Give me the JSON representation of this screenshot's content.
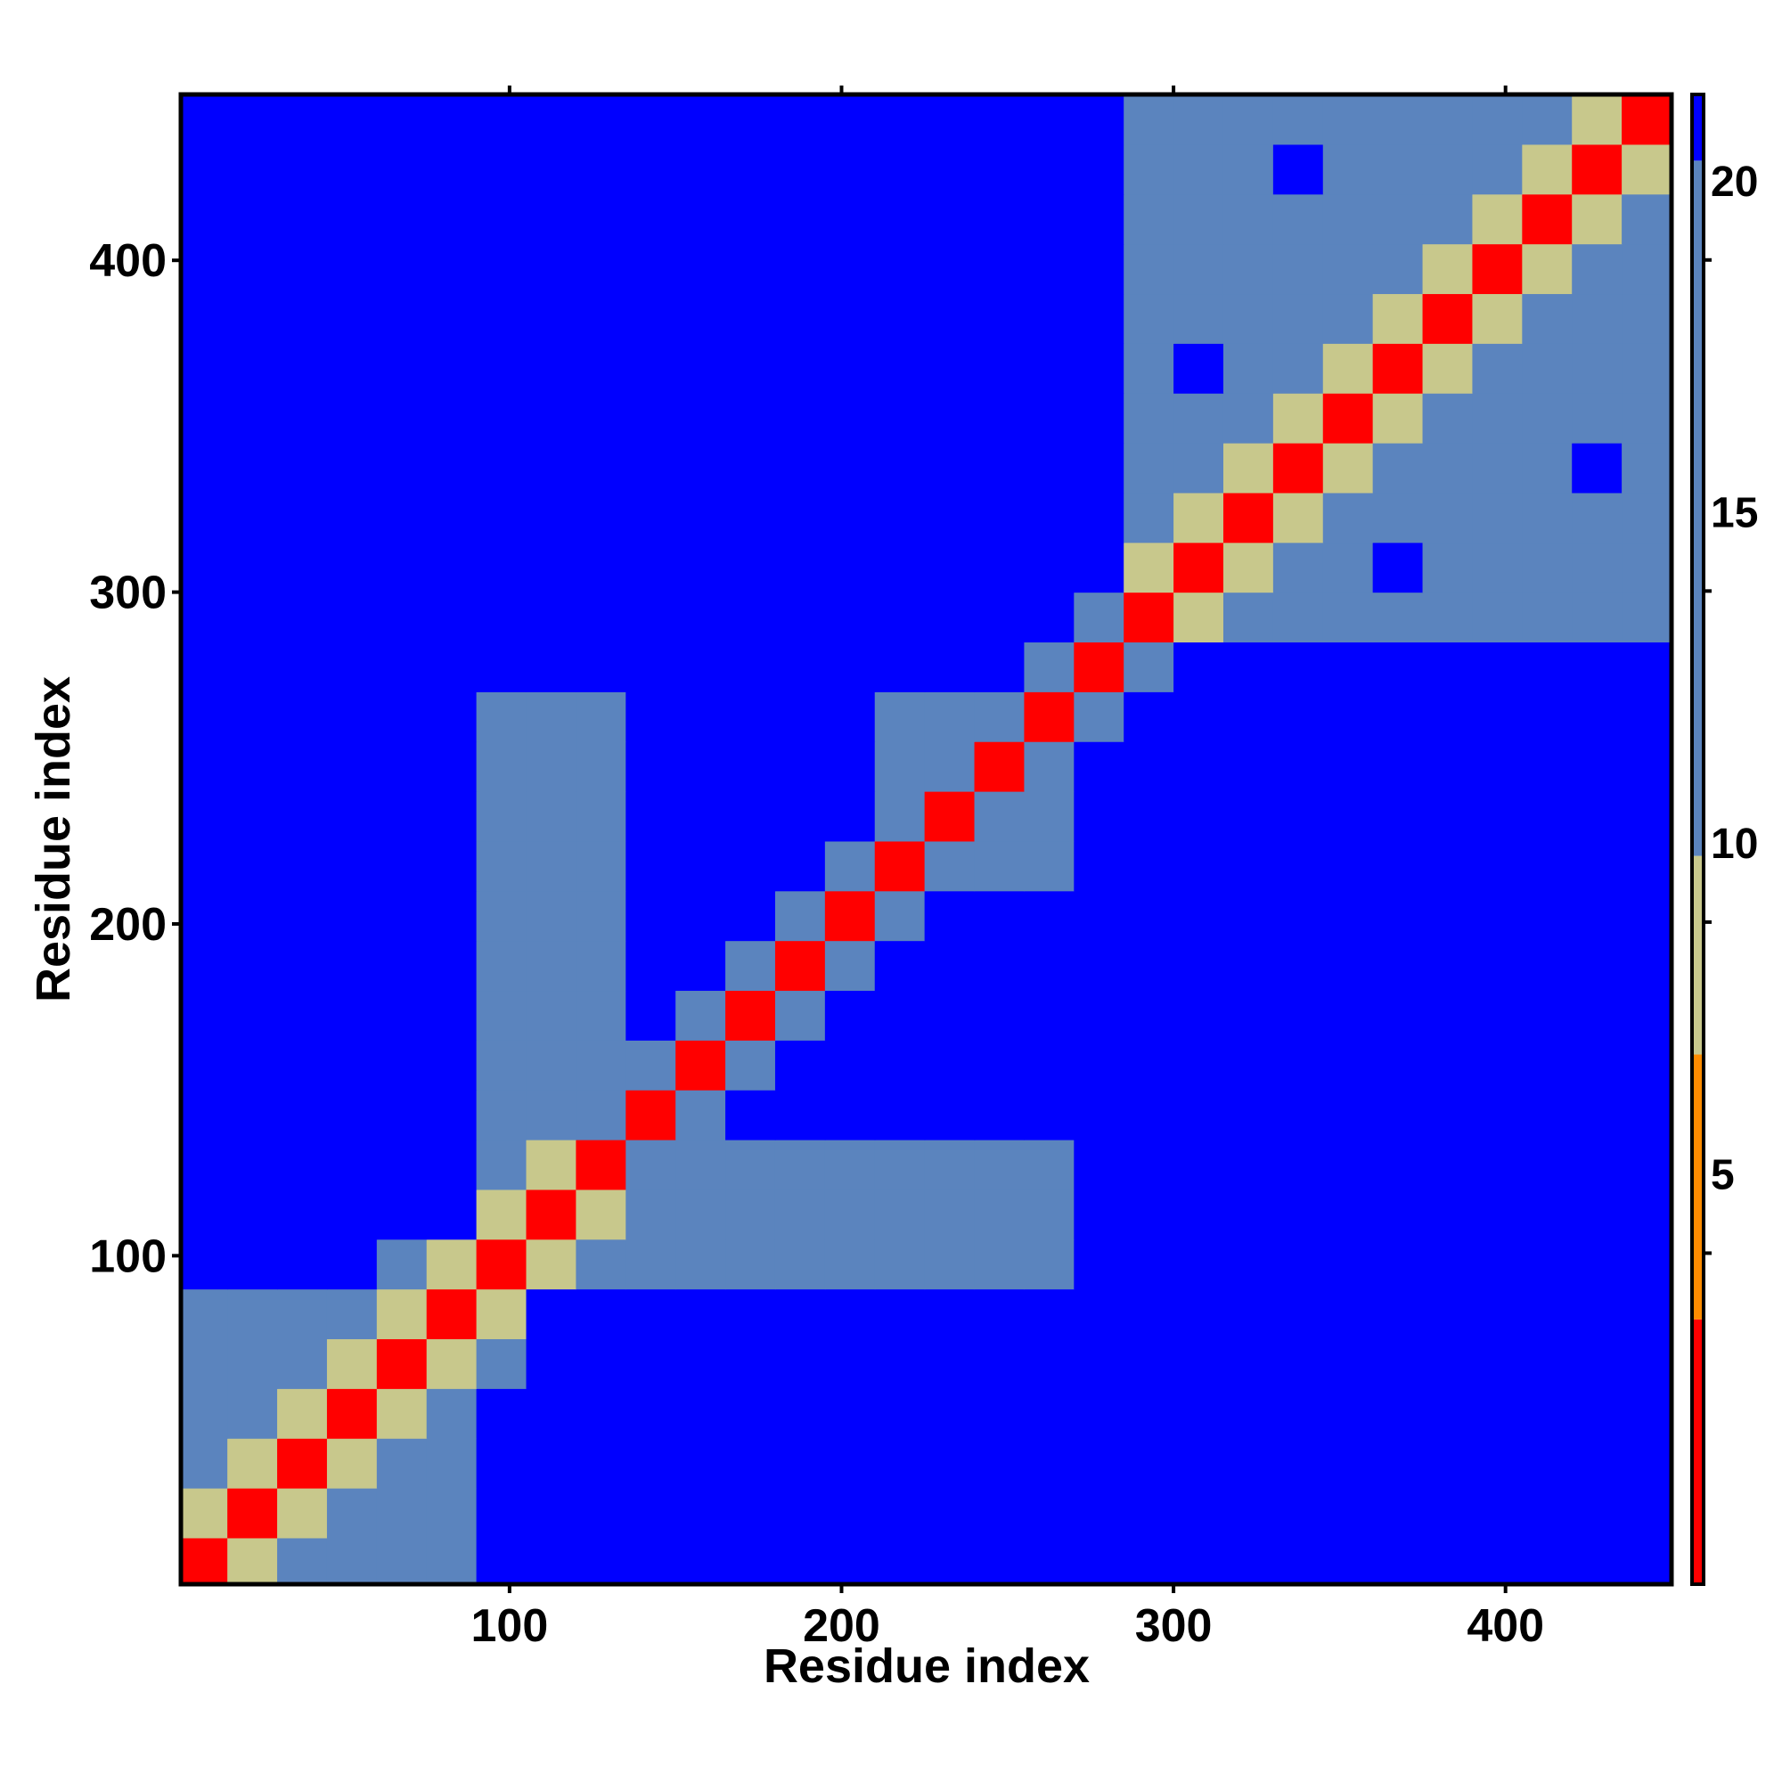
{
  "chart_data": {
    "type": "heatmap",
    "x_label": "Residue index",
    "y_label": "Residue index",
    "x": [
      7.5,
      22.5,
      37.5,
      52.5,
      67.5,
      82.5,
      97.5,
      112.5,
      127.5,
      142.5,
      157.5,
      172.5,
      187.5,
      202.5,
      217.5,
      232.5,
      247.5,
      262.5,
      277.5,
      292.5,
      307.5,
      322.5,
      337.5,
      352.5,
      367.5,
      382.5,
      397.5,
      412.5,
      427.5,
      442.5
    ],
    "y": [
      7.5,
      22.5,
      37.5,
      52.5,
      67.5,
      82.5,
      97.5,
      112.5,
      127.5,
      142.5,
      157.5,
      172.5,
      187.5,
      202.5,
      217.5,
      232.5,
      247.5,
      262.5,
      277.5,
      292.5,
      307.5,
      322.5,
      337.5,
      352.5,
      367.5,
      382.5,
      397.5,
      412.5,
      427.5,
      442.5
    ],
    "z": [
      [
        1,
        9,
        12,
        12,
        12,
        12,
        22,
        22,
        22,
        22,
        22,
        22,
        22,
        22,
        22,
        22,
        22,
        22,
        22,
        22,
        22,
        22,
        22,
        22,
        22,
        22,
        22,
        22,
        22,
        22
      ],
      [
        9,
        1,
        9,
        12,
        12,
        12,
        22,
        22,
        22,
        22,
        22,
        22,
        22,
        22,
        22,
        22,
        22,
        22,
        22,
        22,
        22,
        22,
        22,
        22,
        22,
        22,
        22,
        22,
        22,
        22
      ],
      [
        12,
        9,
        1,
        9,
        12,
        12,
        22,
        22,
        22,
        22,
        22,
        22,
        22,
        22,
        22,
        22,
        22,
        22,
        22,
        22,
        22,
        22,
        22,
        22,
        22,
        22,
        22,
        22,
        22,
        22
      ],
      [
        12,
        12,
        9,
        1,
        9,
        12,
        22,
        22,
        22,
        22,
        22,
        22,
        22,
        22,
        22,
        22,
        22,
        22,
        22,
        22,
        22,
        22,
        22,
        22,
        22,
        22,
        22,
        22,
        22,
        22
      ],
      [
        12,
        12,
        12,
        9,
        1,
        9,
        19,
        22,
        22,
        22,
        22,
        22,
        22,
        22,
        22,
        22,
        22,
        22,
        22,
        22,
        22,
        22,
        22,
        22,
        22,
        22,
        22,
        22,
        22,
        22
      ],
      [
        12,
        12,
        12,
        12,
        9,
        1,
        9,
        22,
        22,
        22,
        22,
        22,
        22,
        22,
        22,
        22,
        22,
        22,
        22,
        22,
        22,
        22,
        22,
        22,
        22,
        22,
        22,
        22,
        22,
        22
      ],
      [
        22,
        22,
        22,
        22,
        19,
        9,
        1,
        9,
        12,
        19,
        19,
        19,
        19,
        19,
        19,
        19,
        19,
        19,
        22,
        22,
        22,
        22,
        22,
        22,
        22,
        22,
        22,
        22,
        22,
        22
      ],
      [
        22,
        22,
        22,
        22,
        22,
        22,
        9,
        1,
        9,
        19,
        19,
        19,
        19,
        19,
        19,
        19,
        19,
        19,
        22,
        22,
        22,
        22,
        22,
        22,
        22,
        22,
        22,
        22,
        22,
        22
      ],
      [
        22,
        22,
        22,
        22,
        22,
        22,
        12,
        9,
        1,
        13,
        19,
        19,
        19,
        19,
        19,
        19,
        19,
        19,
        22,
        22,
        22,
        22,
        22,
        22,
        22,
        22,
        22,
        22,
        22,
        22
      ],
      [
        22,
        22,
        22,
        22,
        22,
        22,
        19,
        19,
        13,
        1,
        13,
        22,
        22,
        22,
        22,
        22,
        22,
        22,
        22,
        22,
        22,
        22,
        22,
        22,
        22,
        22,
        22,
        22,
        22,
        22
      ],
      [
        22,
        22,
        22,
        22,
        22,
        22,
        19,
        19,
        19,
        13,
        1,
        13,
        22,
        22,
        22,
        22,
        22,
        22,
        22,
        22,
        22,
        22,
        22,
        22,
        22,
        22,
        22,
        22,
        22,
        22
      ],
      [
        22,
        22,
        22,
        22,
        22,
        22,
        19,
        19,
        19,
        22,
        13,
        1,
        13,
        22,
        22,
        22,
        22,
        22,
        22,
        22,
        22,
        22,
        22,
        22,
        22,
        22,
        22,
        22,
        22,
        22
      ],
      [
        22,
        22,
        22,
        22,
        22,
        22,
        19,
        19,
        19,
        22,
        22,
        13,
        1,
        13,
        22,
        22,
        22,
        22,
        22,
        22,
        22,
        22,
        22,
        22,
        22,
        22,
        22,
        22,
        22,
        22
      ],
      [
        22,
        22,
        22,
        22,
        22,
        22,
        19,
        19,
        19,
        22,
        22,
        22,
        13,
        1,
        13,
        22,
        22,
        22,
        22,
        22,
        22,
        22,
        22,
        22,
        22,
        22,
        22,
        22,
        22,
        22
      ],
      [
        22,
        22,
        22,
        22,
        22,
        22,
        19,
        19,
        19,
        22,
        22,
        22,
        22,
        13,
        1,
        13,
        19,
        19,
        22,
        22,
        22,
        22,
        22,
        22,
        22,
        22,
        22,
        22,
        22,
        22
      ],
      [
        22,
        22,
        22,
        22,
        22,
        22,
        19,
        19,
        19,
        22,
        22,
        22,
        22,
        22,
        13,
        1,
        13,
        19,
        22,
        22,
        22,
        22,
        22,
        22,
        22,
        22,
        22,
        22,
        22,
        22
      ],
      [
        22,
        22,
        22,
        22,
        22,
        22,
        19,
        19,
        19,
        22,
        22,
        22,
        22,
        22,
        19,
        13,
        1,
        13,
        22,
        22,
        22,
        22,
        22,
        22,
        22,
        22,
        22,
        22,
        22,
        22
      ],
      [
        22,
        22,
        22,
        22,
        22,
        22,
        19,
        19,
        19,
        22,
        22,
        22,
        22,
        22,
        19,
        19,
        13,
        1,
        13,
        22,
        22,
        22,
        22,
        22,
        22,
        22,
        22,
        22,
        22,
        22
      ],
      [
        22,
        22,
        22,
        22,
        22,
        22,
        22,
        22,
        22,
        22,
        22,
        22,
        22,
        22,
        22,
        22,
        22,
        13,
        1,
        13,
        22,
        22,
        22,
        22,
        22,
        22,
        22,
        22,
        22,
        22
      ],
      [
        22,
        22,
        22,
        22,
        22,
        22,
        22,
        22,
        22,
        22,
        22,
        22,
        22,
        22,
        22,
        22,
        22,
        22,
        13,
        1,
        9,
        16,
        16,
        16,
        16,
        16,
        16,
        16,
        16,
        16
      ],
      [
        22,
        22,
        22,
        22,
        22,
        22,
        22,
        22,
        22,
        22,
        22,
        22,
        22,
        22,
        22,
        22,
        22,
        22,
        22,
        9,
        1,
        9,
        16,
        16,
        22,
        16,
        16,
        16,
        16,
        16
      ],
      [
        22,
        22,
        22,
        22,
        22,
        22,
        22,
        22,
        22,
        22,
        22,
        22,
        22,
        22,
        22,
        22,
        22,
        22,
        22,
        16,
        9,
        1,
        9,
        16,
        16,
        16,
        16,
        16,
        16,
        16
      ],
      [
        22,
        22,
        22,
        22,
        22,
        22,
        22,
        22,
        22,
        22,
        22,
        22,
        22,
        22,
        22,
        22,
        22,
        22,
        22,
        16,
        16,
        9,
        1,
        9,
        16,
        16,
        16,
        16,
        22,
        16
      ],
      [
        22,
        22,
        22,
        22,
        22,
        22,
        22,
        22,
        22,
        22,
        22,
        22,
        22,
        22,
        22,
        22,
        22,
        22,
        22,
        16,
        16,
        16,
        9,
        1,
        9,
        16,
        16,
        16,
        16,
        16
      ],
      [
        22,
        22,
        22,
        22,
        22,
        22,
        22,
        22,
        22,
        22,
        22,
        22,
        22,
        22,
        22,
        22,
        22,
        22,
        22,
        16,
        22,
        16,
        16,
        9,
        1,
        9,
        16,
        16,
        16,
        16
      ],
      [
        22,
        22,
        22,
        22,
        22,
        22,
        22,
        22,
        22,
        22,
        22,
        22,
        22,
        22,
        22,
        22,
        22,
        22,
        22,
        16,
        16,
        16,
        16,
        16,
        9,
        1,
        9,
        16,
        16,
        16
      ],
      [
        22,
        22,
        22,
        22,
        22,
        22,
        22,
        22,
        22,
        22,
        22,
        22,
        22,
        22,
        22,
        22,
        22,
        22,
        22,
        16,
        16,
        16,
        16,
        16,
        16,
        9,
        1,
        9,
        16,
        16
      ],
      [
        22,
        22,
        22,
        22,
        22,
        22,
        22,
        22,
        22,
        22,
        22,
        22,
        22,
        22,
        22,
        22,
        22,
        22,
        22,
        16,
        16,
        16,
        16,
        16,
        16,
        16,
        9,
        1,
        9,
        16
      ],
      [
        22,
        22,
        22,
        22,
        22,
        22,
        22,
        22,
        22,
        22,
        22,
        22,
        22,
        22,
        22,
        22,
        22,
        22,
        22,
        16,
        16,
        16,
        22,
        16,
        16,
        16,
        16,
        9,
        1,
        9
      ],
      [
        22,
        22,
        22,
        22,
        22,
        22,
        22,
        22,
        22,
        22,
        22,
        22,
        22,
        22,
        22,
        22,
        22,
        22,
        22,
        16,
        16,
        16,
        16,
        16,
        16,
        16,
        16,
        16,
        9,
        1
      ]
    ],
    "xlim": [
      1,
      450
    ],
    "ylim": [
      1,
      450
    ],
    "xticks": [
      100,
      200,
      300,
      400
    ],
    "yticks": [
      100,
      200,
      300,
      400
    ],
    "clim": [
      0,
      22.5
    ],
    "cticks": [
      5,
      10,
      15,
      20
    ],
    "color_bins": [
      [
        4,
        "#ff0000"
      ],
      [
        8,
        "#ff8c00"
      ],
      [
        11,
        "#c8c88c"
      ],
      [
        21.5,
        "#5b84be"
      ],
      [
        22.5,
        "#0000ff"
      ]
    ]
  }
}
